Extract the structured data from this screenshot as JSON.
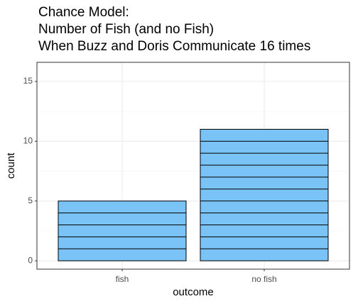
{
  "chart_data": {
    "type": "bar",
    "title": [
      "Chance Model:",
      "Number of Fish (and no Fish)",
      "When Buzz and Doris Communicate 16 times"
    ],
    "x_label": "outcome",
    "y_label": "count",
    "categories": [
      "fish",
      "no fish"
    ],
    "values": [
      5,
      11
    ],
    "color": "#7ac3f6",
    "ylim": [
      -0.7,
      16.6
    ],
    "yticks": [
      0,
      5,
      10,
      15
    ],
    "grid": true
  }
}
